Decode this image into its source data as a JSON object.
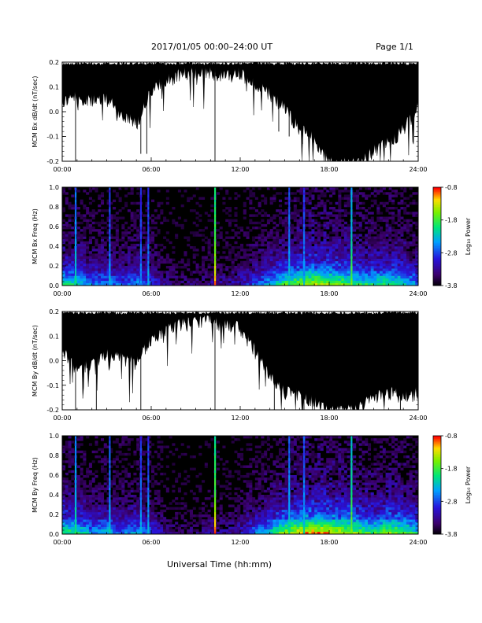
{
  "header": {
    "title": "2017/01/05  00:00–24:00 UT",
    "page": "Page 1/1"
  },
  "footer": {
    "xlabel": "Universal Time (hh:mm)"
  },
  "chart_data": [
    {
      "type": "line",
      "ylabel": "MCM Bx dB/dt (nT/sec)",
      "ylim": [
        -0.2,
        0.2
      ],
      "yticks": [
        "0.2",
        "0.1",
        "0.0",
        "-0.1",
        "-0.2"
      ],
      "xlim": [
        0,
        24
      ],
      "xticks": [
        "00:00",
        "06:00",
        "12:00",
        "18:00",
        "24:00"
      ],
      "series": [
        {
          "color": "#000000",
          "x": [
            0,
            1,
            2,
            3,
            4,
            5,
            6,
            7,
            8,
            9,
            10,
            11,
            12,
            13,
            14,
            15,
            16,
            17,
            18,
            19,
            20,
            21,
            22,
            23,
            24
          ],
          "upper": [
            0.2,
            0.2,
            0.2,
            0.2,
            0.2,
            0.2,
            0.2,
            0.2,
            0.2,
            0.2,
            0.2,
            0.2,
            0.2,
            0.2,
            0.2,
            0.2,
            0.2,
            0.2,
            0.2,
            0.2,
            0.2,
            0.2,
            0.2,
            0.2,
            0.2
          ],
          "lower": [
            0.05,
            0.07,
            0.05,
            0.06,
            0.0,
            -0.04,
            0.09,
            0.13,
            0.16,
            0.17,
            0.17,
            0.15,
            0.16,
            0.11,
            0.08,
            0.02,
            -0.06,
            -0.1,
            -0.2,
            -0.2,
            -0.2,
            -0.15,
            -0.12,
            -0.06,
            0.03
          ]
        }
      ],
      "spikes": [
        [
          0.9,
          -0.2
        ],
        [
          5.3,
          -0.17
        ],
        [
          5.7,
          -0.17
        ],
        [
          10.3,
          -0.2
        ],
        [
          14.6,
          -0.08
        ],
        [
          15.3,
          -0.1
        ],
        [
          16.2,
          -0.13
        ],
        [
          19.5,
          -0.2
        ]
      ]
    },
    {
      "type": "heatmap",
      "ylabel": "MCM Bx Freq (Hz)",
      "ylim": [
        0,
        1.0
      ],
      "yticks": [
        "1.0",
        "0.8",
        "0.6",
        "0.4",
        "0.2",
        "0.0"
      ],
      "xlim": [
        0,
        24
      ],
      "xticks": [
        "00:00",
        "06:00",
        "12:00",
        "18:00",
        "24:00"
      ],
      "colorbar": {
        "label": "Log₁₀ Power",
        "range": [
          -3.8,
          -0.8
        ],
        "ticks": [
          "-0.8",
          "-1.8",
          "-2.8",
          "-3.8"
        ]
      },
      "activity": [
        0.55,
        0.5,
        0.35,
        0.4,
        0.3,
        0.4,
        0.3,
        0.15,
        0.1,
        0.1,
        0.15,
        0.15,
        0.2,
        0.3,
        0.45,
        0.6,
        0.7,
        0.75,
        0.7,
        0.65,
        0.55,
        0.55,
        0.6,
        0.5,
        0.4
      ],
      "bright_columns": [
        {
          "x": 0.9,
          "level": 0.6
        },
        {
          "x": 3.2,
          "level": 0.5
        },
        {
          "x": 5.3,
          "level": 0.45
        },
        {
          "x": 5.8,
          "level": 0.5
        },
        {
          "x": 10.3,
          "level": 0.95
        },
        {
          "x": 15.3,
          "level": 0.55
        },
        {
          "x": 16.3,
          "level": 0.5
        },
        {
          "x": 19.5,
          "level": 0.75
        }
      ]
    },
    {
      "type": "line",
      "ylabel": "MCM By dB/dt (nT/sec)",
      "ylim": [
        -0.2,
        0.2
      ],
      "yticks": [
        "0.2",
        "0.1",
        "0.0",
        "-0.1",
        "-0.2"
      ],
      "xlim": [
        0,
        24
      ],
      "xticks": [
        "00:00",
        "06:00",
        "12:00",
        "18:00",
        "24:00"
      ],
      "series": [
        {
          "color": "#000000",
          "x": [
            0,
            1,
            2,
            3,
            4,
            5,
            6,
            7,
            8,
            9,
            10,
            11,
            12,
            13,
            14,
            15,
            16,
            17,
            18,
            19,
            20,
            21,
            22,
            23,
            24
          ],
          "upper": [
            0.2,
            0.2,
            0.2,
            0.2,
            0.2,
            0.2,
            0.2,
            0.2,
            0.2,
            0.2,
            0.2,
            0.2,
            0.2,
            0.2,
            0.2,
            0.2,
            0.2,
            0.2,
            0.2,
            0.2,
            0.2,
            0.2,
            0.2,
            0.2,
            0.2
          ],
          "lower": [
            0.06,
            -0.04,
            0.0,
            0.04,
            0.02,
            0.0,
            0.1,
            0.13,
            0.16,
            0.17,
            0.17,
            0.15,
            0.14,
            0.05,
            -0.06,
            -0.12,
            -0.13,
            -0.16,
            -0.2,
            -0.2,
            -0.18,
            -0.14,
            -0.12,
            -0.14,
            -0.12
          ]
        }
      ],
      "spikes": [
        [
          0.9,
          -0.2
        ],
        [
          2.3,
          -0.2
        ],
        [
          5.3,
          -0.2
        ],
        [
          10.3,
          -0.2
        ],
        [
          14.3,
          -0.2
        ],
        [
          16.3,
          -0.2
        ],
        [
          19.0,
          -0.2
        ],
        [
          22.8,
          -0.2
        ]
      ]
    },
    {
      "type": "heatmap",
      "ylabel": "MCM By Freq (Hz)",
      "ylim": [
        0,
        1.0
      ],
      "yticks": [
        "1.0",
        "0.8",
        "0.6",
        "0.4",
        "0.2",
        "0.0"
      ],
      "xlim": [
        0,
        24
      ],
      "xticks": [
        "00:00",
        "06:00",
        "12:00",
        "18:00",
        "24:00"
      ],
      "colorbar": {
        "label": "Log₁₀ Power",
        "range": [
          -3.8,
          -0.8
        ],
        "ticks": [
          "-0.8",
          "-1.8",
          "-2.8",
          "-3.8"
        ]
      },
      "activity": [
        0.6,
        0.55,
        0.4,
        0.45,
        0.35,
        0.4,
        0.3,
        0.15,
        0.1,
        0.1,
        0.15,
        0.15,
        0.2,
        0.35,
        0.5,
        0.7,
        0.8,
        0.85,
        0.8,
        0.75,
        0.65,
        0.6,
        0.7,
        0.65,
        0.5
      ],
      "bright_columns": [
        {
          "x": 0.9,
          "level": 0.65
        },
        {
          "x": 3.2,
          "level": 0.55
        },
        {
          "x": 5.3,
          "level": 0.5
        },
        {
          "x": 5.8,
          "level": 0.5
        },
        {
          "x": 10.3,
          "level": 0.95
        },
        {
          "x": 15.3,
          "level": 0.6
        },
        {
          "x": 16.3,
          "level": 0.55
        },
        {
          "x": 19.5,
          "level": 0.8
        }
      ]
    }
  ]
}
